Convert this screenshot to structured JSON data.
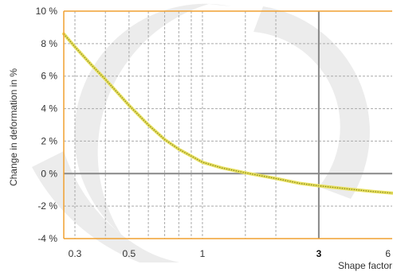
{
  "chart_data": {
    "type": "line",
    "xlabel": "Shape factor",
    "ylabel": "Change in deformation in %",
    "x_scale": "log",
    "xlim": [
      0.27,
      6
    ],
    "ylim": [
      -4,
      10
    ],
    "x_ticks": [
      {
        "value": 0.3,
        "label": "0.3",
        "bold": false
      },
      {
        "value": 0.5,
        "label": "0.5",
        "bold": false
      },
      {
        "value": 1,
        "label": "1",
        "bold": false
      },
      {
        "value": 3,
        "label": "3",
        "bold": true
      },
      {
        "value": 6,
        "label": "6",
        "bold": false
      }
    ],
    "x_minor_gridlines": [
      0.4,
      0.6,
      0.7,
      0.8,
      0.9,
      1.5,
      2
    ],
    "y_ticks": [
      {
        "value": 10,
        "label": "10 %"
      },
      {
        "value": 8,
        "label": "8 %"
      },
      {
        "value": 6,
        "label": "6 %"
      },
      {
        "value": 4,
        "label": "4 %"
      },
      {
        "value": 2,
        "label": "2 %"
      },
      {
        "value": 0,
        "label": "0 %"
      },
      {
        "value": -2,
        "label": "-2 %"
      },
      {
        "value": -4,
        "label": "-4 %"
      }
    ],
    "reference_lines": {
      "x": 3,
      "y": 0
    },
    "grid": true,
    "series": [
      {
        "x": [
          0.27,
          0.3,
          0.35,
          0.4,
          0.5,
          0.6,
          0.7,
          0.8,
          1.0,
          1.2,
          1.5,
          2.0,
          2.5,
          3.0,
          4.0,
          5.0,
          6.0
        ],
        "y": [
          8.6,
          7.8,
          6.7,
          5.8,
          4.2,
          3.0,
          2.1,
          1.5,
          0.7,
          0.35,
          0.05,
          -0.3,
          -0.6,
          -0.75,
          -0.95,
          -1.1,
          -1.2
        ]
      }
    ],
    "colors": {
      "frame": "#f0a030",
      "grid": "#aaaaaa",
      "reference": "#888888",
      "line_fill": "#e8e060",
      "line_dots": "#8a8a20",
      "watermark": "#ececec"
    }
  }
}
